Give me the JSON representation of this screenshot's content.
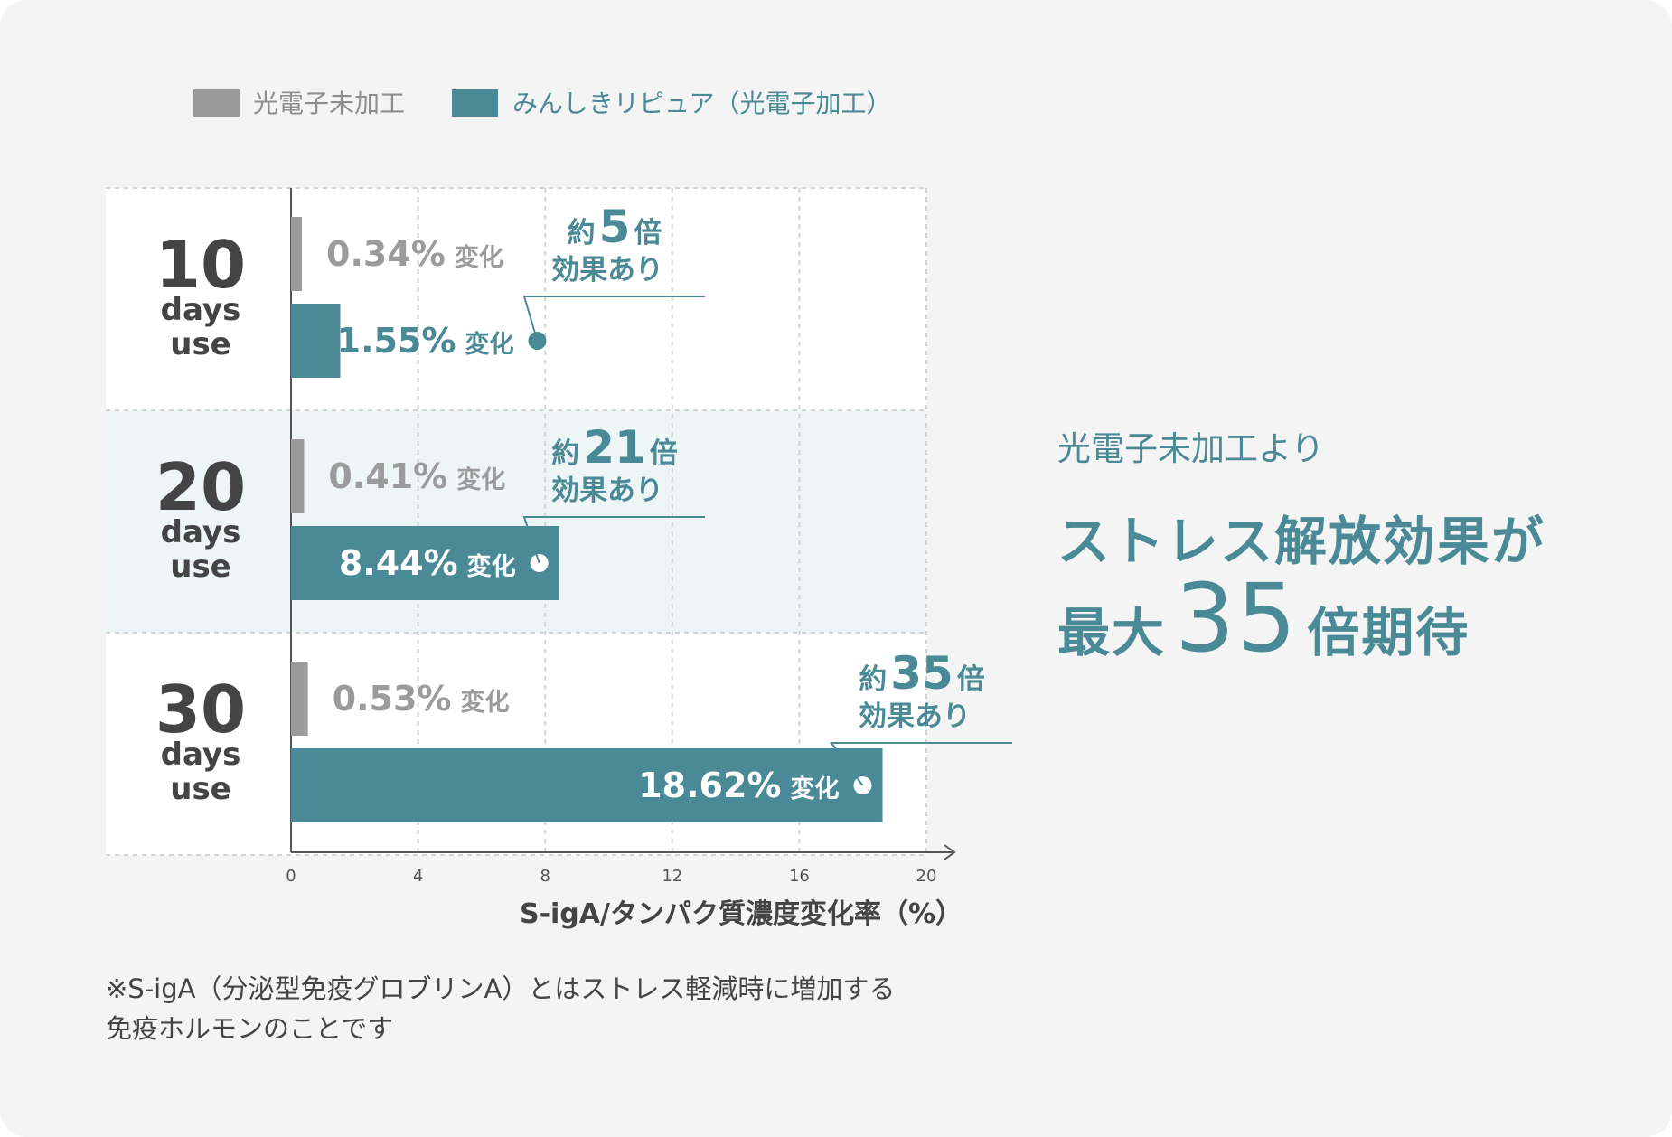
{
  "colors": {
    "gray": "#9b9b9b",
    "teal": "#4a8a96",
    "text": "#444444"
  },
  "chart_data": {
    "type": "bar",
    "orientation": "horizontal",
    "xlabel": "S-igA/タンパク質濃度変化率（%）",
    "xlim": [
      0,
      20
    ],
    "xticks": [
      0,
      4,
      8,
      12,
      16,
      20
    ],
    "legend": {
      "placement": "top-left",
      "gray_label": "光電子未加工",
      "teal_label": "みんしきリピュア（光電子加工）"
    },
    "categories": [
      {
        "num": "10",
        "days": "days",
        "use": "use"
      },
      {
        "num": "20",
        "days": "days",
        "use": "use"
      },
      {
        "num": "30",
        "days": "days",
        "use": "use"
      }
    ],
    "series": [
      {
        "name": "光電子未加工",
        "values": [
          0.34,
          0.41,
          0.53
        ],
        "labels": [
          "0.34%",
          "0.41%",
          "0.53%"
        ]
      },
      {
        "name": "みんしきリピュア（光電子加工）",
        "values": [
          1.55,
          8.44,
          18.62
        ],
        "labels": [
          "1.55%",
          "8.44%",
          "18.62%"
        ]
      }
    ],
    "change_word": "変化",
    "annotations": [
      {
        "a": "約",
        "b": "5",
        "c": "倍",
        "d": "効果あり"
      },
      {
        "a": "約",
        "b": "21",
        "c": "倍",
        "d": "効果あり"
      },
      {
        "a": "約",
        "b": "35",
        "c": "倍",
        "d": "効果あり"
      }
    ]
  },
  "headline": {
    "sub": "光電子未加工より",
    "line1": "ストレス解放効果が",
    "line2_pre": "最大",
    "line2_num": "35",
    "line2_post": "倍期待"
  },
  "note": {
    "line1": "※S-igA（分泌型免疫グロブリンA）とはストレス軽減時に増加する",
    "line2": "免疫ホルモンのことです"
  }
}
